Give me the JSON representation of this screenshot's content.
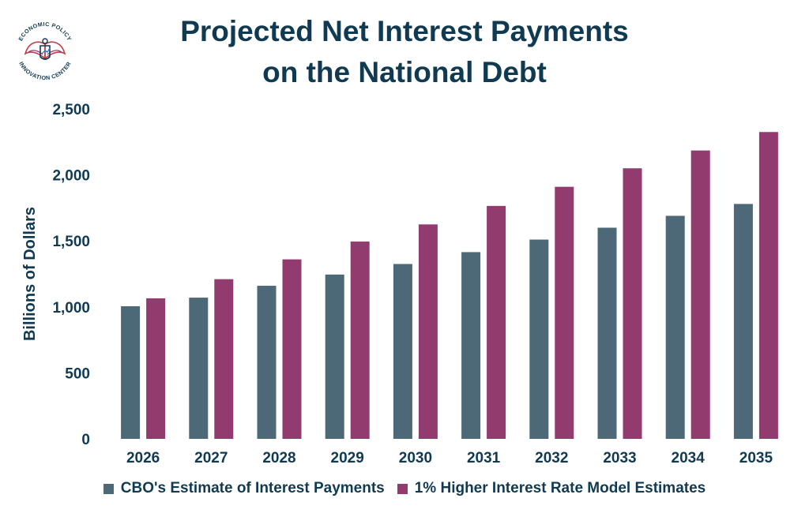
{
  "logo": {
    "top_text": "ECONOMIC POLICY",
    "bottom_text": "INNOVATION CENTER",
    "colors": {
      "navy": "#0f3a52",
      "maroon": "#913b6e",
      "red": "#c0404a",
      "blue": "#3a7cc0"
    }
  },
  "title": {
    "line1": "Projected Net Interest Payments",
    "line2": "on the National Debt"
  },
  "chart_data": {
    "type": "bar",
    "categories": [
      "2026",
      "2027",
      "2028",
      "2029",
      "2030",
      "2031",
      "2032",
      "2033",
      "2034",
      "2035"
    ],
    "series": [
      {
        "name": "CBO's Estimate of Interest Payments",
        "color": "#4d6877",
        "values": [
          1005,
          1070,
          1160,
          1245,
          1325,
          1415,
          1510,
          1600,
          1690,
          1780
        ]
      },
      {
        "name": "1% Higher Interest Rate Model Estimates",
        "color": "#913b6e",
        "values": [
          1065,
          1210,
          1360,
          1495,
          1625,
          1765,
          1910,
          2050,
          2185,
          2325
        ]
      }
    ],
    "ylabel": "Billions of Dollars",
    "xlabel": "",
    "ylim": [
      0,
      2500
    ],
    "yticks": [
      0,
      500,
      1000,
      1500,
      2000,
      2500
    ],
    "ytick_labels": [
      "0",
      "500",
      "1,000",
      "1,500",
      "2,000",
      "2,500"
    ],
    "grid": false,
    "legend_position": "bottom"
  }
}
